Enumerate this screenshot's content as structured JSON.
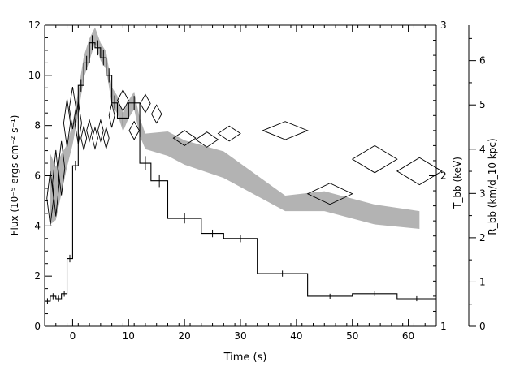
{
  "chart_data": {
    "type": "line",
    "xlabel": "Time (s)",
    "xlim": [
      -5,
      65
    ],
    "x_ticks": [
      0,
      10,
      20,
      30,
      40,
      50,
      60
    ],
    "left_axis": {
      "label": "Flux (10⁻⁹ ergs cm⁻² s⁻¹)",
      "range": [
        0,
        12
      ],
      "ticks": [
        0,
        2,
        4,
        6,
        8,
        10,
        12
      ]
    },
    "right_axis_T": {
      "label": "T_bb (keV)",
      "range": [
        1,
        3
      ],
      "ticks": [
        1,
        2,
        3
      ]
    },
    "right_axis_R": {
      "label": "R_bb (km/d_10 kpc)",
      "range": [
        0,
        6.8
      ],
      "ticks": [
        0,
        1,
        2,
        3,
        4,
        5,
        6
      ]
    },
    "series": [
      {
        "style": "histogram",
        "edges": [
          -5,
          -4,
          -3,
          -2,
          -1,
          0,
          1,
          2,
          3,
          4,
          5,
          6,
          7,
          8,
          10,
          12,
          14,
          17,
          23,
          27,
          33,
          42,
          50,
          58,
          65
        ],
        "values": [
          1.0,
          1.2,
          1.1,
          1.3,
          2.7,
          6.4,
          9.6,
          10.5,
          11.3,
          11.1,
          10.7,
          10.0,
          8.9,
          8.3,
          8.9,
          6.5,
          5.8,
          4.3,
          3.7,
          3.5,
          2.1,
          1.2,
          1.3,
          1.1
        ],
        "errors": [
          0.12,
          0.12,
          0.12,
          0.12,
          0.15,
          0.2,
          0.25,
          0.28,
          0.3,
          0.3,
          0.3,
          0.28,
          0.3,
          0.3,
          0.28,
          0.28,
          0.25,
          0.2,
          0.15,
          0.15,
          0.12,
          0.1,
          0.1,
          0.1
        ]
      },
      {
        "style": "band",
        "axis": "R",
        "x": [
          -4,
          -3,
          -2,
          -1,
          0,
          1,
          2,
          3,
          4,
          5,
          6,
          7,
          8,
          9,
          10,
          11,
          12,
          13,
          17,
          20,
          27,
          38,
          45,
          54,
          62
        ],
        "lower": [
          2.3,
          2.4,
          3.0,
          3.6,
          4.1,
          4.8,
          5.6,
          6.0,
          6.4,
          6.0,
          5.8,
          5.0,
          4.8,
          4.4,
          4.7,
          4.9,
          4.3,
          4.0,
          3.85,
          3.65,
          3.35,
          2.6,
          2.6,
          2.3,
          2.2
        ],
        "upper": [
          3.9,
          3.6,
          3.9,
          4.1,
          4.6,
          5.3,
          6.1,
          6.5,
          6.75,
          6.4,
          6.2,
          5.4,
          5.2,
          4.8,
          5.1,
          5.3,
          4.7,
          4.35,
          4.4,
          4.2,
          3.95,
          2.95,
          3.05,
          2.75,
          2.6
        ]
      },
      {
        "style": "diamond-markers",
        "axis": "T",
        "points": [
          {
            "x": -4,
            "y": 1.85,
            "dx": 0.6,
            "dy": 0.18
          },
          {
            "x": -3,
            "y": 1.95,
            "dx": 0.6,
            "dy": 0.22
          },
          {
            "x": -2,
            "y": 2.05,
            "dx": 0.6,
            "dy": 0.18
          },
          {
            "x": -1,
            "y": 2.35,
            "dx": 0.6,
            "dy": 0.16
          },
          {
            "x": 0,
            "y": 2.45,
            "dx": 0.6,
            "dy": 0.14
          },
          {
            "x": 1,
            "y": 2.35,
            "dx": 0.6,
            "dy": 0.14
          },
          {
            "x": 2,
            "y": 2.25,
            "dx": 0.5,
            "dy": 0.08
          },
          {
            "x": 3,
            "y": 2.3,
            "dx": 0.5,
            "dy": 0.07
          },
          {
            "x": 4,
            "y": 2.25,
            "dx": 0.5,
            "dy": 0.07
          },
          {
            "x": 5,
            "y": 2.3,
            "dx": 0.5,
            "dy": 0.07
          },
          {
            "x": 6,
            "y": 2.25,
            "dx": 0.5,
            "dy": 0.07
          },
          {
            "x": 7,
            "y": 2.4,
            "dx": 0.5,
            "dy": 0.08
          },
          {
            "x": 9,
            "y": 2.5,
            "dx": 1.0,
            "dy": 0.07
          },
          {
            "x": 11,
            "y": 2.3,
            "dx": 0.9,
            "dy": 0.06
          },
          {
            "x": 13,
            "y": 2.48,
            "dx": 0.9,
            "dy": 0.06
          },
          {
            "x": 15,
            "y": 2.41,
            "dx": 0.9,
            "dy": 0.06
          },
          {
            "x": 20,
            "y": 2.25,
            "dx": 2.0,
            "dy": 0.05
          },
          {
            "x": 24,
            "y": 2.24,
            "dx": 2.0,
            "dy": 0.05
          },
          {
            "x": 28,
            "y": 2.28,
            "dx": 2.0,
            "dy": 0.05
          },
          {
            "x": 38,
            "y": 2.3,
            "dx": 4.0,
            "dy": 0.06
          },
          {
            "x": 46,
            "y": 1.88,
            "dx": 4.0,
            "dy": 0.07
          },
          {
            "x": 54,
            "y": 2.11,
            "dx": 4.0,
            "dy": 0.09
          },
          {
            "x": 62,
            "y": 2.03,
            "dx": 4.0,
            "dy": 0.09
          }
        ]
      }
    ],
    "grid": false,
    "colors": {
      "histogram": "#000000",
      "band": "#b3b3b3",
      "diamond_stroke": "#000000"
    }
  }
}
